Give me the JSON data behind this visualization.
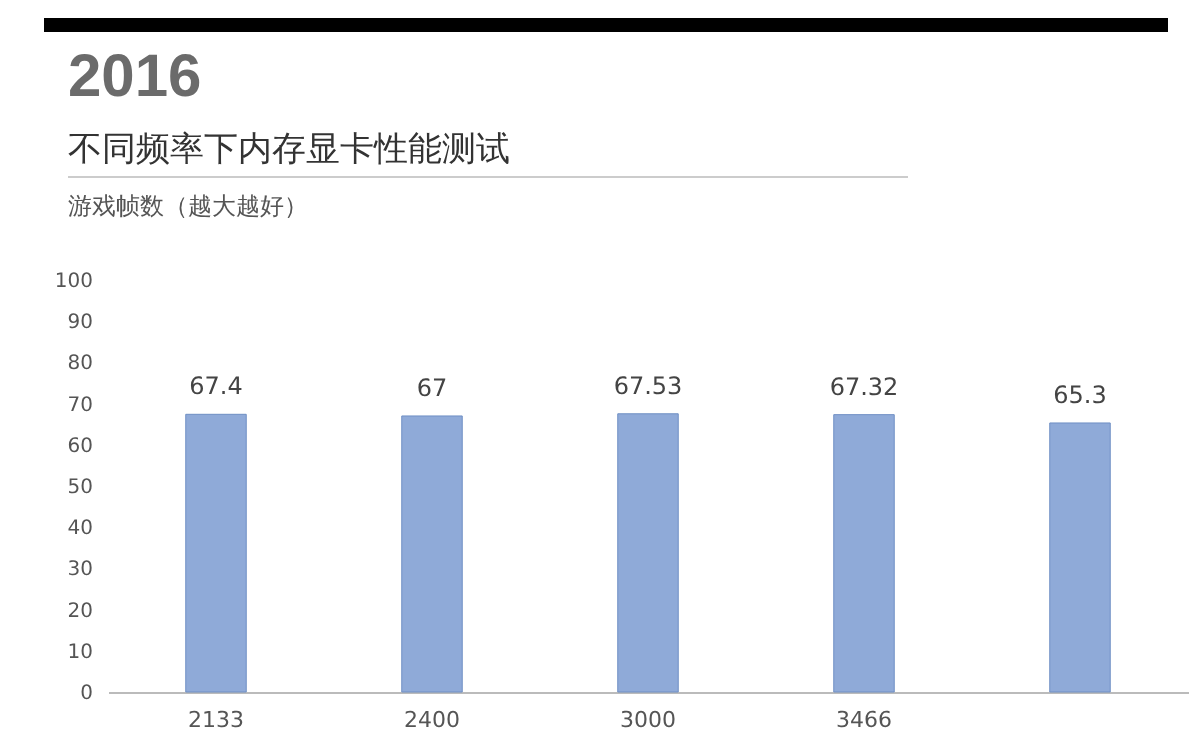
{
  "chart_data": {
    "type": "bar",
    "title": "不同频率下内存显卡性能测试",
    "subtitle": "游戏帧数（越大越好）",
    "annotations": [
      "2016"
    ],
    "categories": [
      "2133",
      "2400",
      "3000",
      "3466",
      null
    ],
    "values": [
      67.4,
      67,
      67.53,
      67.32,
      65.3
    ],
    "color": "#8faad8",
    "ylim": [
      0,
      100
    ],
    "yticks": [
      0,
      10,
      20,
      30,
      40,
      50,
      60,
      70,
      80,
      90,
      100
    ],
    "data_labels": true
  }
}
